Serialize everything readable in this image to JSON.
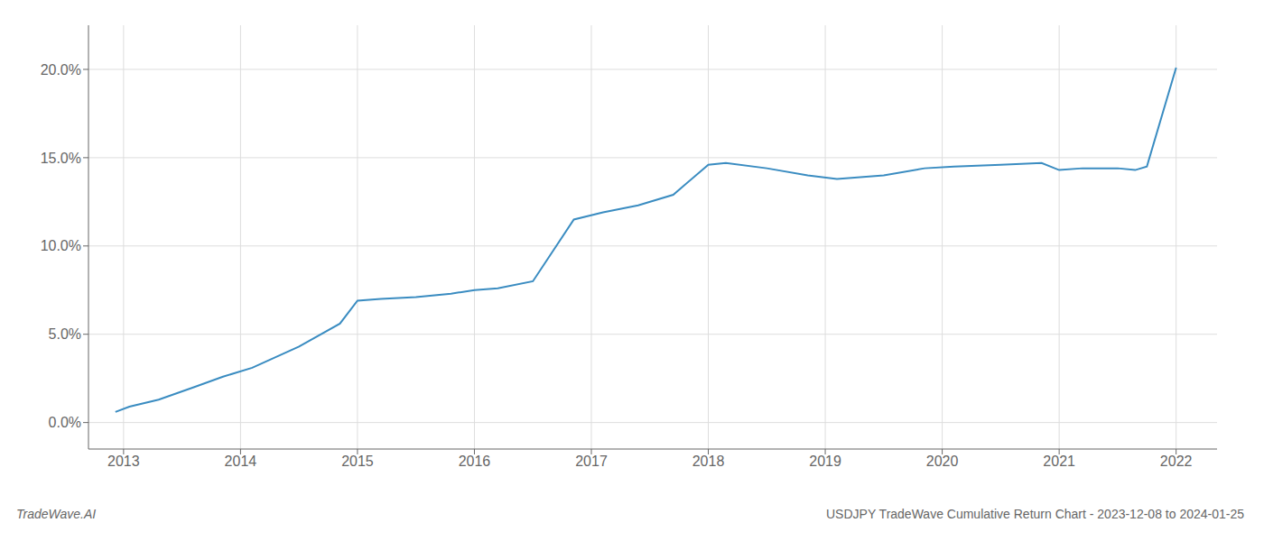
{
  "chart_data": {
    "type": "line",
    "x": [
      2012.93,
      2013.05,
      2013.3,
      2013.6,
      2013.85,
      2014.1,
      2014.5,
      2014.85,
      2015.0,
      2015.2,
      2015.5,
      2015.8,
      2016.0,
      2016.2,
      2016.5,
      2016.85,
      2017.1,
      2017.4,
      2017.7,
      2018.0,
      2018.15,
      2018.5,
      2018.85,
      2019.1,
      2019.5,
      2019.85,
      2020.1,
      2020.5,
      2020.85,
      2021.0,
      2021.2,
      2021.5,
      2021.65,
      2021.75,
      2022.0
    ],
    "values": [
      0.006,
      0.009,
      0.013,
      0.02,
      0.026,
      0.031,
      0.043,
      0.056,
      0.069,
      0.07,
      0.071,
      0.073,
      0.075,
      0.076,
      0.08,
      0.115,
      0.119,
      0.123,
      0.129,
      0.146,
      0.147,
      0.144,
      0.14,
      0.138,
      0.14,
      0.144,
      0.145,
      0.146,
      0.147,
      0.143,
      0.144,
      0.144,
      0.143,
      0.145,
      0.201
    ],
    "color": "#3a8cc1",
    "xlim": [
      2012.7,
      2022.35
    ],
    "xticks": [
      2013,
      2014,
      2015,
      2016,
      2017,
      2018,
      2019,
      2020,
      2021,
      2022
    ],
    "ylim": [
      -0.015,
      0.225
    ],
    "yticks": [
      {
        "value": 0.0,
        "label": "0.0%"
      },
      {
        "value": 0.05,
        "label": "5.0%"
      },
      {
        "value": 0.1,
        "label": "10.0%"
      },
      {
        "value": 0.15,
        "label": "15.0%"
      },
      {
        "value": 0.2,
        "label": "20.0%"
      }
    ],
    "grid": true,
    "annotations": [
      "TradeWave.AI",
      "USDJPY TradeWave Cumulative Return Chart - 2023-12-08 to 2024-01-25"
    ]
  }
}
